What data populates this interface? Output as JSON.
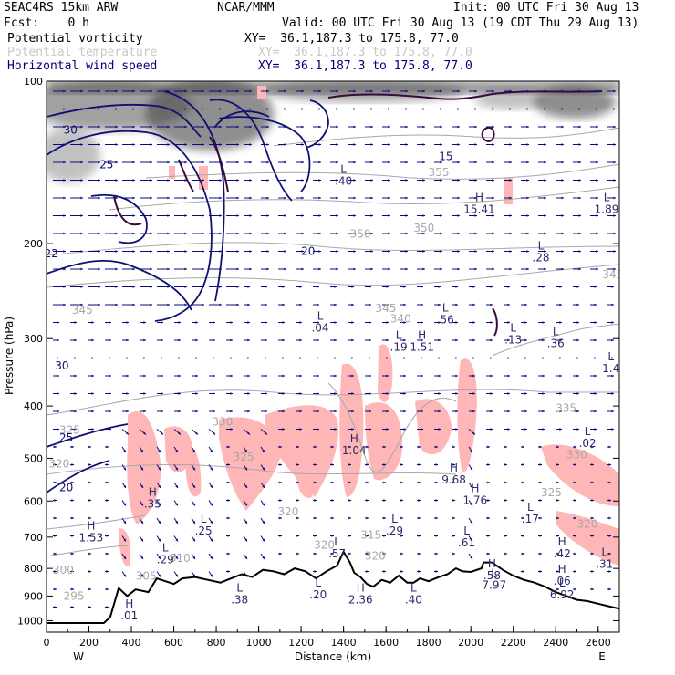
{
  "header": {
    "model": "SEAC4RS 15km ARW",
    "org": "NCAR/MMM",
    "init": "Init: 00 UTC Fri 30 Aug 13",
    "fcst": "Fcst:    0 h",
    "valid": "Valid: 00 UTC Fri 30 Aug 13 (19 CDT Thu 29 Aug 13)"
  },
  "fields": [
    {
      "name": "Potential vorticity",
      "xy": "XY=  36.1,187.3 to 175.8, 77.0",
      "color": "#000000"
    },
    {
      "name": "Potential temperature",
      "xy": "XY=  36.1,187.3 to 175.8, 77.0",
      "color": "#c8c8c8"
    },
    {
      "name": "Horizontal wind speed",
      "xy": "XY=  36.1,187.3 to 175.8, 77.0",
      "color": "#00007a"
    }
  ],
  "colors": {
    "pv_shade": "#555555",
    "rh_shade": "#ffb6b6",
    "theta": "#a8a8a8",
    "wind": "#0a0a82",
    "terrain": "#000000",
    "hl_label": "#2a2a6a"
  },
  "chart_data": {
    "type": "cross-section",
    "xlabel": "Distance (km)",
    "ylabel": "Pressure (hPa)",
    "xlim": [
      0,
      2700
    ],
    "ylim": [
      1050,
      100
    ],
    "y_log": true,
    "x_ticks": [
      "0",
      "200",
      "400",
      "600",
      "800",
      "1000",
      "1200",
      "1400",
      "1600",
      "1800",
      "2000",
      "2200",
      "2400",
      "2600"
    ],
    "y_ticks": [
      "100",
      "200",
      "300",
      "400",
      "500",
      "600",
      "700",
      "800",
      "900",
      "1000"
    ],
    "end_labels": {
      "left": "W",
      "right": "E"
    },
    "terrain": [
      [
        0,
        1010
      ],
      [
        270,
        1010
      ],
      [
        300,
        985
      ],
      [
        340,
        870
      ],
      [
        380,
        900
      ],
      [
        420,
        875
      ],
      [
        480,
        885
      ],
      [
        520,
        835
      ],
      [
        560,
        845
      ],
      [
        600,
        855
      ],
      [
        640,
        835
      ],
      [
        700,
        830
      ],
      [
        760,
        840
      ],
      [
        820,
        850
      ],
      [
        870,
        835
      ],
      [
        920,
        820
      ],
      [
        970,
        830
      ],
      [
        1020,
        805
      ],
      [
        1070,
        810
      ],
      [
        1120,
        820
      ],
      [
        1170,
        800
      ],
      [
        1220,
        810
      ],
      [
        1270,
        835
      ],
      [
        1320,
        810
      ],
      [
        1370,
        790
      ],
      [
        1400,
        745
      ],
      [
        1430,
        780
      ],
      [
        1450,
        815
      ],
      [
        1480,
        830
      ],
      [
        1510,
        855
      ],
      [
        1540,
        865
      ],
      [
        1580,
        840
      ],
      [
        1620,
        850
      ],
      [
        1660,
        825
      ],
      [
        1700,
        850
      ],
      [
        1730,
        850
      ],
      [
        1760,
        835
      ],
      [
        1800,
        845
      ],
      [
        1850,
        830
      ],
      [
        1890,
        820
      ],
      [
        1930,
        800
      ],
      [
        1960,
        810
      ],
      [
        2000,
        812
      ],
      [
        2050,
        800
      ],
      [
        2060,
        780
      ],
      [
        2100,
        780
      ],
      [
        2150,
        805
      ],
      [
        2200,
        825
      ],
      [
        2250,
        840
      ],
      [
        2300,
        850
      ],
      [
        2350,
        865
      ],
      [
        2400,
        885
      ],
      [
        2450,
        900
      ],
      [
        2500,
        915
      ],
      [
        2550,
        920
      ],
      [
        2600,
        930
      ],
      [
        2650,
        940
      ],
      [
        2700,
        950
      ]
    ],
    "theta_labels": [
      {
        "text": "355",
        "x": 1800,
        "p": 150
      },
      {
        "text": "350",
        "x": 1730,
        "p": 190
      },
      {
        "text": "350",
        "x": 1430,
        "p": 195
      },
      {
        "text": "345",
        "x": 2620,
        "p": 232
      },
      {
        "text": "345",
        "x": 1550,
        "p": 268
      },
      {
        "text": "345",
        "x": 120,
        "p": 270
      },
      {
        "text": "340",
        "x": 1620,
        "p": 280
      },
      {
        "text": "335",
        "x": 2400,
        "p": 410
      },
      {
        "text": "330",
        "x": 2450,
        "p": 500
      },
      {
        "text": "330",
        "x": 780,
        "p": 435
      },
      {
        "text": "325",
        "x": 60,
        "p": 450
      },
      {
        "text": "325",
        "x": 880,
        "p": 505
      },
      {
        "text": "325",
        "x": 2330,
        "p": 588
      },
      {
        "text": "320",
        "x": 10,
        "p": 520
      },
      {
        "text": "320",
        "x": 2500,
        "p": 672
      },
      {
        "text": "320",
        "x": 1090,
        "p": 638
      },
      {
        "text": "315",
        "x": 1480,
        "p": 705
      },
      {
        "text": "320",
        "x": 1260,
        "p": 735
      },
      {
        "text": "320",
        "x": 1500,
        "p": 770
      },
      {
        "text": "310",
        "x": 580,
        "p": 778
      },
      {
        "text": "305",
        "x": 420,
        "p": 840
      },
      {
        "text": "300",
        "x": 30,
        "p": 818
      },
      {
        "text": "295",
        "x": 80,
        "p": 915
      }
    ],
    "wind_labels": [
      {
        "text": "30",
        "x": 80,
        "p": 125
      },
      {
        "text": "25",
        "x": 250,
        "p": 145
      },
      {
        "text": "22",
        "x": -10,
        "p": 212
      },
      {
        "text": "20",
        "x": 1200,
        "p": 210
      },
      {
        "text": "15",
        "x": 1850,
        "p": 140
      },
      {
        "text": "30",
        "x": 40,
        "p": 342
      },
      {
        "text": "25",
        "x": 60,
        "p": 465
      },
      {
        "text": "20",
        "x": 60,
        "p": 575
      }
    ],
    "hl_marks": [
      {
        "letter": "L",
        "value": ".40",
        "x": 1400,
        "p": 155
      },
      {
        "letter": "H",
        "value": "15.41",
        "x": 2040,
        "p": 175
      },
      {
        "letter": "L",
        "value": "1.89",
        "x": 2640,
        "p": 175
      },
      {
        "letter": "L",
        "value": ".28",
        "x": 2330,
        "p": 215
      },
      {
        "letter": "L",
        "value": ".04",
        "x": 1290,
        "p": 290
      },
      {
        "letter": "L",
        "value": ".56",
        "x": 1880,
        "p": 280
      },
      {
        "letter": "L",
        "value": ".19",
        "x": 1660,
        "p": 315
      },
      {
        "letter": "H",
        "value": "1.51",
        "x": 1770,
        "p": 315
      },
      {
        "letter": "L",
        "value": ".13",
        "x": 2200,
        "p": 305
      },
      {
        "letter": "L",
        "value": ".36",
        "x": 2400,
        "p": 310
      },
      {
        "letter": "L",
        "value": "1.4",
        "x": 2660,
        "p": 345
      },
      {
        "letter": "L",
        "value": ".02",
        "x": 2550,
        "p": 475
      },
      {
        "letter": "H",
        "value": "1.04",
        "x": 1450,
        "p": 490
      },
      {
        "letter": "H",
        "value": "9.68",
        "x": 1920,
        "p": 555
      },
      {
        "letter": "H",
        "value": "1.76",
        "x": 2020,
        "p": 605
      },
      {
        "letter": "L",
        "value": ".17",
        "x": 2280,
        "p": 655
      },
      {
        "letter": "H",
        "value": ".35",
        "x": 500,
        "p": 615
      },
      {
        "letter": "L",
        "value": ".25",
        "x": 740,
        "p": 690
      },
      {
        "letter": "L",
        "value": ".29",
        "x": 1640,
        "p": 690
      },
      {
        "letter": "L",
        "value": ".61",
        "x": 1980,
        "p": 725
      },
      {
        "letter": "H",
        "value": "1.53",
        "x": 210,
        "p": 710
      },
      {
        "letter": "L",
        "value": ".29",
        "x": 560,
        "p": 780
      },
      {
        "letter": "L",
        "value": ".57",
        "x": 1370,
        "p": 760
      },
      {
        "letter": "H",
        "value": ".42",
        "x": 2430,
        "p": 760
      },
      {
        "letter": "H",
        "value": ".58",
        "x": 2100,
        "p": 835
      },
      {
        "letter": "L",
        "value": ".31",
        "x": 2630,
        "p": 795
      },
      {
        "letter": "L",
        "value": "7.97",
        "x": 2110,
        "p": 870
      },
      {
        "letter": "H",
        "value": ".06",
        "x": 2430,
        "p": 855
      },
      {
        "letter": "L",
        "value": ".38",
        "x": 910,
        "p": 925
      },
      {
        "letter": "H",
        "value": "2.36",
        "x": 1480,
        "p": 925
      },
      {
        "letter": "L",
        "value": ".20",
        "x": 1280,
        "p": 905
      },
      {
        "letter": "L",
        "value": ".40",
        "x": 1730,
        "p": 925
      },
      {
        "letter": "L",
        "value": "6.92",
        "x": 2430,
        "p": 905
      },
      {
        "letter": "H",
        "value": ".01",
        "x": 390,
        "p": 990
      }
    ]
  }
}
